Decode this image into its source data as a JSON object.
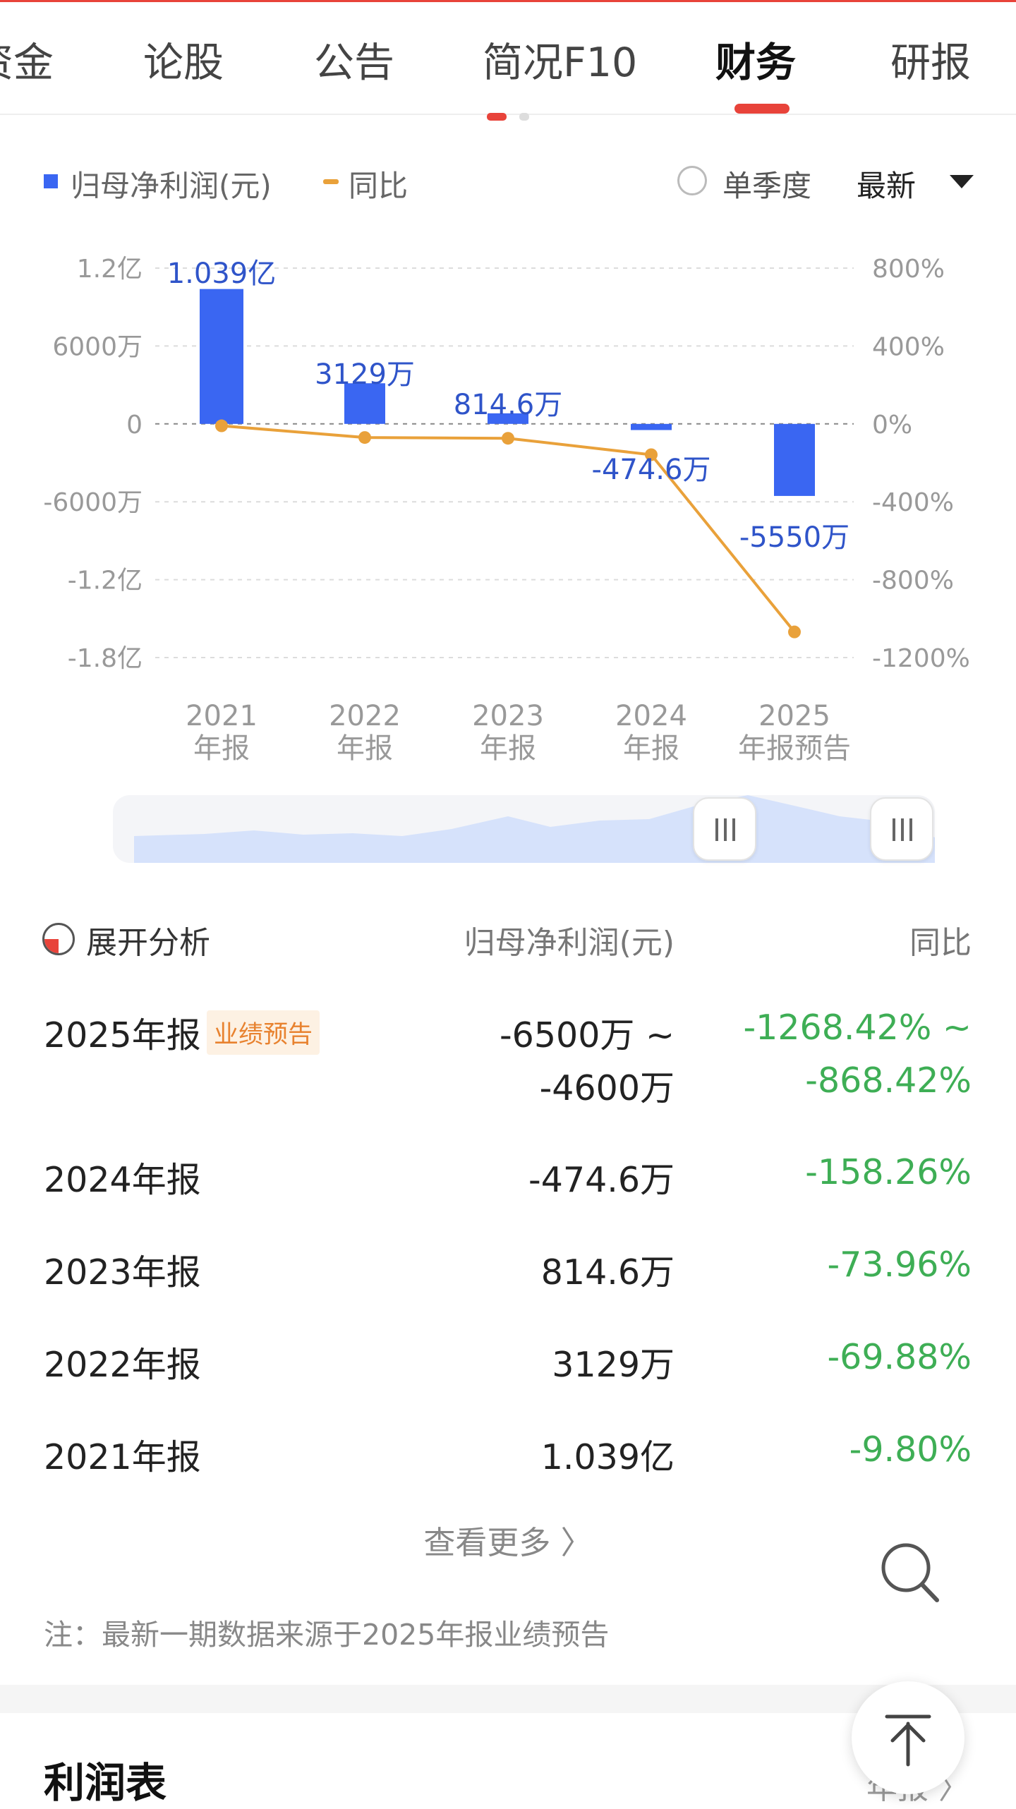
{
  "colors": {
    "accent": "#e8433a",
    "bar": "#3a66f2",
    "line": "#e9a13a",
    "positive_green": "#3eae55",
    "badge_text": "#e8822f"
  },
  "tabs": [
    {
      "label": "资金",
      "active": false
    },
    {
      "label": "论股",
      "active": false
    },
    {
      "label": "公告",
      "active": false
    },
    {
      "label": "简况F10",
      "active": false
    },
    {
      "label": "财务",
      "active": true
    },
    {
      "label": "研报",
      "active": false
    }
  ],
  "legend": {
    "series1": "归母净利润(元)",
    "series2": "同比",
    "single_quarter": "单季度",
    "latest": "最新"
  },
  "chart_data": {
    "type": "bar",
    "categories": [
      [
        "2021",
        "年报"
      ],
      [
        "2022",
        "年报"
      ],
      [
        "2023",
        "年报"
      ],
      [
        "2024",
        "年报"
      ],
      [
        "2025",
        "年报预告"
      ]
    ],
    "left_axis_ticks": [
      "1.2亿",
      "6000万",
      "0",
      "-6000万",
      "-1.2亿",
      "-1.8亿"
    ],
    "right_axis_ticks": [
      "800%",
      "400%",
      "0%",
      "-400%",
      "-800%",
      "-1200%"
    ],
    "left_ylim": [
      -180000000,
      120000000
    ],
    "right_ylim": [
      -1200,
      800
    ],
    "grid": true,
    "series": [
      {
        "name": "归母净利润(元)",
        "type": "bar",
        "values": [
          103900000,
          31290000,
          8146000,
          -4746000,
          -55500000
        ],
        "labels": [
          "1.039亿",
          "3129万",
          "814.6万",
          "-474.6万",
          "-5550万"
        ]
      },
      {
        "name": "同比",
        "type": "line",
        "values": [
          -9.8,
          -69.88,
          -73.96,
          -158.26,
          -1068.42
        ]
      }
    ]
  },
  "table": {
    "header": {
      "expand": "展开分析",
      "col_value": "归母净利润(元)",
      "col_yoy": "同比"
    },
    "rows": [
      {
        "period": "2025年报",
        "badge": "业绩预告",
        "value_line1": "-6500万 ~",
        "value_line2": "-4600万",
        "yoy_line1": "-1268.42% ~",
        "yoy_line2": "-868.42%"
      },
      {
        "period": "2024年报",
        "value": "-474.6万",
        "yoy": "-158.26%"
      },
      {
        "period": "2023年报",
        "value": "814.6万",
        "yoy": "-73.96%"
      },
      {
        "period": "2022年报",
        "value": "3129万",
        "yoy": "-69.88%"
      },
      {
        "period": "2021年报",
        "value": "1.039亿",
        "yoy": "-9.80%"
      }
    ],
    "more": "查看更多 〉",
    "note": "注：最新一期数据来源于2025年报业绩预告"
  },
  "section": {
    "title": "利润表",
    "corner": "年报 〉"
  },
  "icons": {
    "search": "search-icon",
    "scroll_top": "arrow-up-icon",
    "pie": "pie-chart-icon",
    "dropdown": "triangle-down-icon"
  }
}
